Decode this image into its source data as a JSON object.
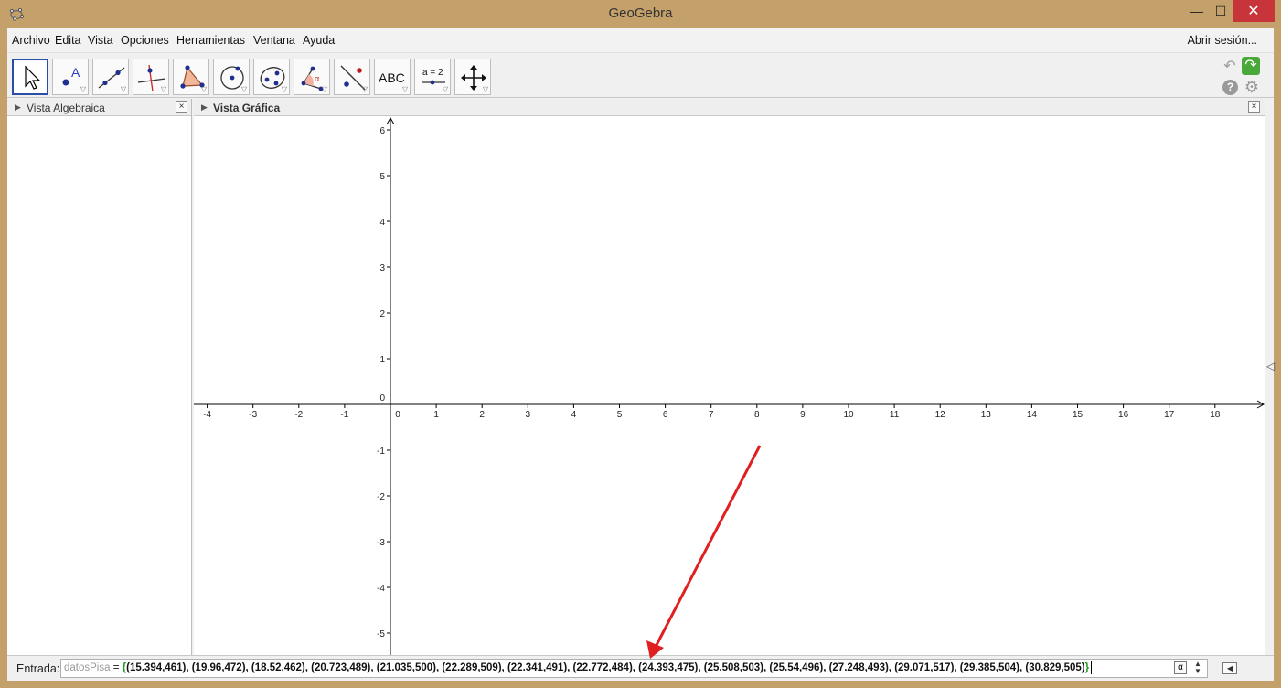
{
  "window": {
    "title": "GeoGebra",
    "min": "—",
    "max": "☐",
    "close": "✕"
  },
  "menu": {
    "items": [
      "Archivo",
      "Edita",
      "Vista",
      "Opciones",
      "Herramientas",
      "Ventana",
      "Ayuda"
    ],
    "login": "Abrir sesión..."
  },
  "toolbar": {
    "tools": [
      {
        "name": "move-tool",
        "label": ""
      },
      {
        "name": "point-tool",
        "label": "A"
      },
      {
        "name": "line-tool",
        "label": ""
      },
      {
        "name": "perpendicular-line-tool",
        "label": ""
      },
      {
        "name": "polygon-tool",
        "label": ""
      },
      {
        "name": "circle-center-point-tool",
        "label": ""
      },
      {
        "name": "ellipse-tool",
        "label": ""
      },
      {
        "name": "angle-tool",
        "label": "α"
      },
      {
        "name": "reflect-tool",
        "label": ""
      },
      {
        "name": "text-tool",
        "label": "ABC"
      },
      {
        "name": "slider-tool",
        "label": "a = 2"
      },
      {
        "name": "move-graphics-view-tool",
        "label": ""
      }
    ]
  },
  "algebra_view": {
    "title": "Vista Algebraica",
    "close": "×"
  },
  "graphics_view": {
    "title": "Vista Gráfica",
    "close": "×",
    "x_ticks": [
      "-4",
      "-3",
      "-2",
      "-1",
      "0",
      "1",
      "2",
      "3",
      "4",
      "5",
      "6",
      "7",
      "8",
      "9",
      "10",
      "11",
      "12",
      "13",
      "14",
      "15",
      "16",
      "17",
      "18"
    ],
    "y_ticks": [
      "6",
      "5",
      "4",
      "3",
      "2",
      "1",
      "0",
      "-1",
      "-2",
      "-3",
      "-4",
      "-5"
    ]
  },
  "input_bar": {
    "label": "Entrada:",
    "var_name": "datosPisa",
    "equals": " = ",
    "open_brace": "{",
    "list_text": "(15.394,461), (19.96,472), (18.52,462), (20.723,489), (21.035,500), (22.289,509), (22.341,491), (22.772,484), (24.393,475), (25.508,503), (25.54,496), (27.248,493), (29.071,517), (29.385,504), (30.829,505)",
    "close_brace": "}",
    "alpha": "α"
  },
  "colors": {
    "annotation_arrow": "#e02020",
    "active_tool_border": "#2a4ea8",
    "redo_green": "#4aa83a",
    "window_frame": "#c4a06a"
  }
}
